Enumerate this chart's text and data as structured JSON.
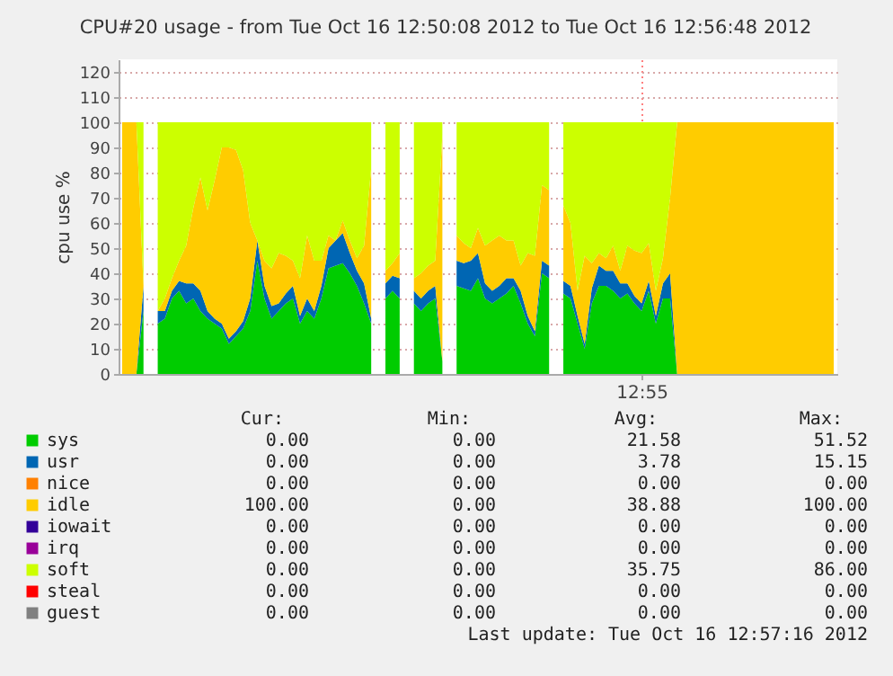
{
  "chart_data": {
    "type": "area",
    "stacked": true,
    "title": "CPU#20 usage - from Tue Oct 16 12:50:08 2012 to Tue Oct 16 12:56:48 2012",
    "ylabel": "cpu use %",
    "categories": [
      null,
      null,
      null,
      null,
      null,
      null,
      null,
      null,
      null,
      null,
      null,
      null,
      null,
      null,
      null,
      null,
      null,
      null,
      null,
      null,
      null,
      null,
      null,
      null,
      null,
      null,
      null,
      null,
      null,
      null,
      null,
      null,
      null,
      null,
      null,
      null,
      null,
      null,
      null,
      null,
      null,
      null,
      null,
      null,
      null,
      null,
      null,
      null,
      null,
      null,
      null,
      null,
      null,
      null,
      null,
      null,
      null,
      null,
      null,
      null,
      null,
      null,
      null,
      null,
      null,
      null,
      null,
      null,
      null,
      null,
      null,
      null,
      null,
      "12:55",
      null,
      null,
      null,
      null,
      null,
      null,
      null,
      null,
      null,
      null,
      null,
      null,
      null,
      null,
      null,
      null,
      null,
      null,
      null,
      null,
      null,
      null,
      null,
      null,
      null,
      null,
      null
    ],
    "ylim": [
      0,
      125
    ],
    "yticks": [
      0,
      10,
      20,
      30,
      40,
      50,
      60,
      70,
      80,
      90,
      100,
      110,
      120
    ],
    "grid": true,
    "legend": "bottom",
    "series": [
      {
        "name": "sys",
        "color": "#00cc00",
        "values": [
          0,
          0,
          0,
          25,
          null,
          20,
          22,
          30,
          33,
          28,
          30,
          25,
          22,
          20,
          18,
          12,
          15,
          18,
          25,
          45,
          30,
          22,
          25,
          28,
          30,
          20,
          25,
          22,
          30,
          42,
          43,
          44,
          40,
          35,
          28,
          20,
          null,
          30,
          33,
          30,
          null,
          28,
          25,
          28,
          30,
          5,
          null,
          35,
          34,
          33,
          38,
          30,
          28,
          30,
          32,
          35,
          28,
          20,
          15,
          40,
          38,
          null,
          32,
          30,
          20,
          10,
          28,
          35,
          35,
          33,
          30,
          32,
          28,
          25,
          33,
          20,
          30,
          30,
          0,
          0,
          0,
          0,
          0,
          0,
          0,
          0,
          0,
          0,
          0,
          0,
          0,
          0,
          0,
          0,
          0,
          0,
          0,
          0,
          0,
          0,
          0
        ]
      },
      {
        "name": "usr",
        "color": "#0066b3",
        "values": [
          0,
          0,
          0,
          10,
          null,
          5,
          3,
          3,
          4,
          8,
          6,
          8,
          3,
          2,
          2,
          2,
          2,
          3,
          5,
          8,
          5,
          5,
          3,
          4,
          5,
          3,
          5,
          3,
          5,
          8,
          10,
          12,
          8,
          6,
          8,
          2,
          null,
          6,
          6,
          8,
          null,
          5,
          5,
          5,
          5,
          0,
          null,
          10,
          10,
          12,
          10,
          6,
          5,
          5,
          6,
          3,
          5,
          3,
          2,
          5,
          5,
          null,
          5,
          5,
          3,
          2,
          6,
          8,
          6,
          8,
          6,
          4,
          3,
          3,
          4,
          3,
          6,
          10,
          0,
          0,
          0,
          0,
          0,
          0,
          0,
          0,
          0,
          0,
          0,
          0,
          0,
          0,
          0,
          0,
          0,
          0,
          0,
          0,
          0,
          0,
          0
        ]
      },
      {
        "name": "nice",
        "color": "#ff8000",
        "values": [
          null,
          null,
          null,
          null,
          null,
          null,
          null,
          null,
          null,
          null,
          null,
          null,
          null,
          null,
          null,
          null,
          null,
          null,
          null,
          null,
          null,
          null,
          null,
          null,
          null,
          null,
          null,
          null,
          null,
          null,
          null,
          null,
          null,
          null,
          null,
          null,
          null,
          null,
          null,
          null,
          null,
          null,
          null,
          null,
          null,
          null,
          null,
          null,
          null,
          null,
          null,
          null,
          null,
          null,
          null,
          null,
          null,
          null,
          null,
          null,
          null,
          null,
          null,
          null,
          null,
          null,
          null,
          null,
          null,
          null,
          null,
          null,
          null,
          null,
          null,
          null,
          null,
          null,
          null,
          null,
          null,
          null,
          null,
          null,
          null,
          null,
          null,
          null,
          null,
          null,
          null,
          null,
          null,
          null,
          null,
          null,
          null,
          null,
          null,
          null,
          null
        ]
      },
      {
        "name": "idle",
        "color": "#ffcc00",
        "values": [
          100,
          100,
          100,
          0,
          null,
          0,
          5,
          5,
          8,
          15,
          30,
          45,
          40,
          55,
          70,
          76,
          72,
          60,
          30,
          0,
          10,
          15,
          20,
          15,
          10,
          15,
          25,
          20,
          10,
          5,
          0,
          5,
          5,
          5,
          15,
          60,
          null,
          5,
          5,
          10,
          null,
          5,
          10,
          10,
          10,
          90,
          null,
          10,
          8,
          5,
          10,
          15,
          20,
          20,
          15,
          15,
          10,
          25,
          30,
          30,
          30,
          null,
          30,
          25,
          10,
          35,
          10,
          5,
          5,
          10,
          5,
          15,
          18,
          20,
          15,
          10,
          10,
          30,
          100,
          100,
          100,
          100,
          100,
          100,
          100,
          100,
          100,
          100,
          100,
          100,
          100,
          100,
          100,
          100,
          100,
          100,
          100,
          100,
          100,
          100,
          100
        ]
      },
      {
        "name": "iowait",
        "color": "#330099",
        "values": [
          null,
          null,
          null,
          null,
          null,
          null,
          null,
          null,
          null,
          null,
          null,
          null,
          null,
          null,
          null,
          null,
          null,
          null,
          null,
          null,
          null,
          null,
          null,
          null,
          null,
          null,
          null,
          null,
          null,
          null,
          null,
          null,
          null,
          null,
          null,
          null,
          null,
          null,
          null,
          null,
          null,
          null,
          null,
          null,
          null,
          null,
          null,
          null,
          null,
          null,
          null,
          null,
          null,
          null,
          null,
          null,
          null,
          null,
          null,
          null,
          null,
          null,
          null,
          null,
          null,
          null,
          null,
          null,
          null,
          null,
          null,
          null,
          null,
          null,
          null,
          null,
          null,
          null,
          null,
          null,
          null,
          null,
          null,
          null,
          null,
          null,
          null,
          null,
          null,
          null,
          null,
          null,
          null,
          null,
          null,
          null,
          null,
          null,
          null,
          null,
          null
        ]
      },
      {
        "name": "irq",
        "color": "#990099",
        "values": [
          null,
          null,
          null,
          null,
          null,
          null,
          null,
          null,
          null,
          null,
          null,
          null,
          null,
          null,
          null,
          null,
          null,
          null,
          null,
          null,
          null,
          null,
          null,
          null,
          null,
          null,
          null,
          null,
          null,
          null,
          null,
          null,
          null,
          null,
          null,
          null,
          null,
          null,
          null,
          null,
          null,
          null,
          null,
          null,
          null,
          null,
          null,
          null,
          null,
          null,
          null,
          null,
          null,
          null,
          null,
          null,
          null,
          null,
          null,
          null,
          null,
          null,
          null,
          null,
          null,
          null,
          null,
          null,
          null,
          null,
          null,
          null,
          null,
          null,
          null,
          null,
          null,
          null,
          null,
          null,
          null,
          null,
          null,
          null,
          null,
          null,
          null,
          null,
          null,
          null,
          null,
          null,
          null,
          null,
          null,
          null,
          null,
          null,
          null,
          null,
          null
        ]
      },
      {
        "name": "soft",
        "color": "#ccff00",
        "values": [
          0,
          0,
          0,
          65,
          null,
          75,
          70,
          62,
          55,
          49,
          34,
          22,
          35,
          23,
          10,
          10,
          11,
          19,
          40,
          47,
          55,
          58,
          52,
          53,
          55,
          62,
          45,
          55,
          55,
          45,
          47,
          39,
          47,
          54,
          49,
          18,
          null,
          59,
          56,
          52,
          null,
          62,
          60,
          57,
          55,
          5,
          null,
          45,
          48,
          50,
          42,
          49,
          47,
          45,
          47,
          47,
          57,
          52,
          53,
          25,
          27,
          null,
          33,
          40,
          67,
          53,
          56,
          52,
          54,
          49,
          59,
          49,
          51,
          52,
          48,
          67,
          54,
          30,
          0,
          0,
          0,
          0,
          0,
          0,
          0,
          0,
          0,
          0,
          0,
          0,
          0,
          0,
          0,
          0,
          0,
          0,
          0,
          0,
          0,
          0,
          0
        ]
      },
      {
        "name": "steal",
        "color": "#ff0000",
        "values": [
          null,
          null,
          null,
          null,
          null,
          null,
          null,
          null,
          null,
          null,
          null,
          null,
          null,
          null,
          null,
          null,
          null,
          null,
          null,
          null,
          null,
          null,
          null,
          null,
          null,
          null,
          null,
          null,
          null,
          null,
          null,
          null,
          null,
          null,
          null,
          null,
          null,
          null,
          null,
          null,
          null,
          null,
          null,
          null,
          null,
          null,
          null,
          null,
          null,
          null,
          null,
          null,
          null,
          null,
          null,
          null,
          null,
          null,
          null,
          null,
          null,
          null,
          null,
          null,
          null,
          null,
          null,
          null,
          null,
          null,
          null,
          null,
          null,
          null,
          null,
          null,
          null,
          null,
          null,
          null,
          null,
          null,
          null,
          null,
          null,
          null,
          null,
          null,
          null,
          null,
          null,
          null,
          null,
          null,
          null,
          null,
          null,
          null,
          null,
          null,
          null
        ]
      },
      {
        "name": "guest",
        "color": "#808080",
        "values": [
          null,
          null,
          null,
          null,
          null,
          null,
          null,
          null,
          null,
          null,
          null,
          null,
          null,
          null,
          null,
          null,
          null,
          null,
          null,
          null,
          null,
          null,
          null,
          null,
          null,
          null,
          null,
          null,
          null,
          null,
          null,
          null,
          null,
          null,
          null,
          null,
          null,
          null,
          null,
          null,
          null,
          null,
          null,
          null,
          null,
          null,
          null,
          null,
          null,
          null,
          null,
          null,
          null,
          null,
          null,
          null,
          null,
          null,
          null,
          null,
          null,
          null,
          null,
          null,
          null,
          null,
          null,
          null,
          null,
          null,
          null,
          null,
          null,
          null,
          null,
          null,
          null,
          null,
          null,
          null,
          null,
          null,
          null,
          null,
          null,
          null,
          null,
          null,
          null,
          null,
          null,
          null,
          null,
          null,
          null,
          null,
          null,
          null,
          null,
          null,
          null
        ]
      }
    ],
    "annotations": [
      "Cur:",
      "Min:",
      "Avg:",
      "Max:",
      "0.00",
      "0.00",
      "21.58",
      "51.52",
      "0.00",
      "0.00",
      "3.78",
      "15.15",
      "0.00",
      "0.00",
      "0.00",
      "0.00",
      "100.00",
      "0.00",
      "38.88",
      "100.00",
      "0.00",
      "0.00",
      "0.00",
      "0.00",
      "0.00",
      "0.00",
      "0.00",
      "0.00",
      "0.00",
      "0.00",
      "35.75",
      "86.00",
      "0.00",
      "0.00",
      "0.00",
      "0.00",
      "0.00",
      "0.00",
      "0.00",
      "0.00",
      "Last update: Tue Oct 16 12:57:16 2012"
    ]
  }
}
